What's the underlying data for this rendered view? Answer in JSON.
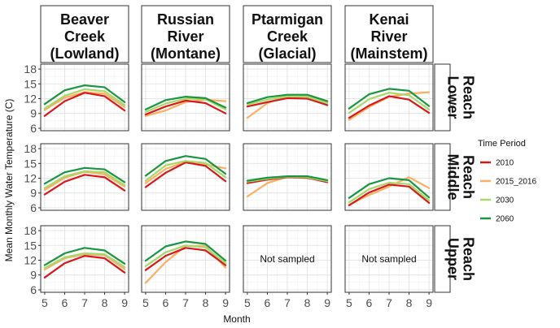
{
  "chart_data": {
    "type": "line",
    "facet_columns": [
      "Beaver\nCreek\n(Lowland)",
      "Russian\nRiver\n(Montane)",
      "Ptarmigan\nCreek\n(Glacial)",
      "Kenai\nRiver\n(Mainstem)"
    ],
    "facet_rows": [
      "Lower\nReach",
      "Middle\nReach",
      "Upper\nReach"
    ],
    "xlabel": "Month",
    "ylabel": "Mean Monthly Water Temperature (C)",
    "x": [
      5,
      6,
      7,
      8,
      9
    ],
    "x_ticks": [
      "5",
      "6",
      "7",
      "8",
      "9"
    ],
    "y_ticks": [
      "6",
      "9",
      "12",
      "15",
      "18"
    ],
    "ylim": [
      5.5,
      19
    ],
    "legend": {
      "title": "Time Period",
      "position": "right",
      "entries": [
        "2010",
        "2015_2016",
        "2030",
        "2060"
      ]
    },
    "series_colors": {
      "2010": "#d7191c",
      "2015_2016": "#fdae61",
      "2030": "#a6d96a",
      "2060": "#1a9641"
    },
    "not_sampled_label": "Not sampled",
    "panels": [
      {
        "col": 0,
        "row": 0,
        "sampled": true,
        "series": [
          {
            "name": "2010",
            "values": [
              8.5,
              11.5,
              13.2,
              12.5,
              9.6
            ]
          },
          {
            "name": "2015_2016",
            "values": [
              9.7,
              12.2,
              13.3,
              13.0,
              10.3
            ]
          },
          {
            "name": "2030",
            "values": [
              10.0,
              12.6,
              13.9,
              13.5,
              10.7
            ]
          },
          {
            "name": "2060",
            "values": [
              10.9,
              13.7,
              14.7,
              14.3,
              11.3
            ]
          }
        ]
      },
      {
        "col": 1,
        "row": 0,
        "sampled": true,
        "series": [
          {
            "name": "2010",
            "values": [
              8.8,
              10.4,
              11.6,
              11.1,
              9.0
            ]
          },
          {
            "name": "2015_2016",
            "values": [
              8.5,
              9.6,
              11.3,
              11.8,
              11.5
            ]
          },
          {
            "name": "2030",
            "values": [
              9.3,
              11.0,
              12.0,
              11.9,
              9.8
            ]
          },
          {
            "name": "2060",
            "values": [
              9.8,
              11.7,
              12.4,
              12.1,
              10.2
            ]
          }
        ]
      },
      {
        "col": 2,
        "row": 0,
        "sampled": true,
        "series": [
          {
            "name": "2010",
            "values": [
              10.4,
              11.3,
              12.1,
              12.0,
              10.7
            ]
          },
          {
            "name": "2015_2016",
            "values": [
              8.1,
              11.1,
              12.6,
              12.5,
              11.2
            ]
          },
          {
            "name": "2030",
            "values": [
              10.8,
              11.8,
              12.5,
              12.4,
              11.1
            ]
          },
          {
            "name": "2060",
            "values": [
              11.1,
              12.3,
              12.8,
              12.8,
              11.5
            ]
          }
        ]
      },
      {
        "col": 3,
        "row": 0,
        "sampled": true,
        "series": [
          {
            "name": "2010",
            "values": [
              8.1,
              10.6,
              12.5,
              11.8,
              9.1
            ]
          },
          {
            "name": "2015_2016",
            "values": [
              7.7,
              10.3,
              12.4,
              13.0,
              13.3
            ]
          },
          {
            "name": "2030",
            "values": [
              9.1,
              11.9,
              13.2,
              12.7,
              9.8
            ]
          },
          {
            "name": "2060",
            "values": [
              10.0,
              12.9,
              14.0,
              13.6,
              10.5
            ]
          }
        ]
      },
      {
        "col": 0,
        "row": 1,
        "sampled": true,
        "series": [
          {
            "name": "2010",
            "values": [
              8.7,
              11.3,
              12.7,
              12.2,
              9.5
            ]
          },
          {
            "name": "2015_2016",
            "values": [
              9.6,
              12.1,
              13.3,
              12.8,
              10.3
            ]
          },
          {
            "name": "2030",
            "values": [
              10.0,
              12.4,
              13.4,
              13.2,
              10.6
            ]
          },
          {
            "name": "2060",
            "values": [
              10.9,
              13.2,
              14.1,
              13.8,
              11.2
            ]
          }
        ]
      },
      {
        "col": 1,
        "row": 1,
        "sampled": true,
        "series": [
          {
            "name": "2010",
            "values": [
              10.2,
              13.1,
              15.2,
              14.5,
              11.4
            ]
          },
          {
            "name": "2015_2016",
            "values": [
              11.0,
              13.9,
              15.3,
              14.8,
              14.0
            ]
          },
          {
            "name": "2030",
            "values": [
              11.5,
              14.6,
              15.5,
              15.1,
              12.2
            ]
          },
          {
            "name": "2060",
            "values": [
              12.5,
              15.5,
              16.5,
              15.9,
              12.9
            ]
          }
        ]
      },
      {
        "col": 2,
        "row": 1,
        "sampled": true,
        "series": [
          {
            "name": "2010",
            "values": [
              11.0,
              11.7,
              12.2,
              12.1,
              11.2
            ]
          },
          {
            "name": "2015_2016",
            "values": [
              8.3,
              11.0,
              12.3,
              12.0,
              11.5
            ]
          },
          {
            "name": "2030",
            "values": [
              11.3,
              11.9,
              12.3,
              12.2,
              11.4
            ]
          },
          {
            "name": "2060",
            "values": [
              11.5,
              12.1,
              12.4,
              12.4,
              11.6
            ]
          }
        ]
      },
      {
        "col": 3,
        "row": 1,
        "sampled": true,
        "series": [
          {
            "name": "2010",
            "values": [
              6.5,
              9.1,
              10.7,
              10.3,
              7.0
            ]
          },
          {
            "name": "2015_2016",
            "values": [
              6.6,
              8.6,
              10.3,
              12.2,
              10.0
            ]
          },
          {
            "name": "2030",
            "values": [
              7.1,
              9.8,
              11.1,
              10.8,
              7.5
            ]
          },
          {
            "name": "2060",
            "values": [
              8.0,
              10.8,
              12.0,
              11.6,
              8.1
            ]
          }
        ]
      },
      {
        "col": 0,
        "row": 2,
        "sampled": true,
        "series": [
          {
            "name": "2010",
            "values": [
              8.5,
              11.4,
              12.9,
              12.4,
              9.5
            ]
          },
          {
            "name": "2015_2016",
            "values": [
              10.1,
              12.4,
              13.2,
              13.0,
              10.2
            ]
          },
          {
            "name": "2030",
            "values": [
              10.4,
              12.6,
              13.4,
              13.2,
              10.6
            ]
          },
          {
            "name": "2060",
            "values": [
              11.0,
              13.4,
              14.5,
              14.0,
              11.3
            ]
          }
        ]
      },
      {
        "col": 1,
        "row": 2,
        "sampled": true,
        "series": [
          {
            "name": "2010",
            "values": [
              10.0,
              12.9,
              14.5,
              14.0,
              11.0
            ]
          },
          {
            "name": "2015_2016",
            "values": [
              7.4,
              11.6,
              14.9,
              14.9,
              10.5
            ]
          },
          {
            "name": "2030",
            "values": [
              10.8,
              13.6,
              15.0,
              14.6,
              11.4
            ]
          },
          {
            "name": "2060",
            "values": [
              11.9,
              14.8,
              15.8,
              15.3,
              11.9
            ]
          }
        ]
      },
      {
        "col": 2,
        "row": 2,
        "sampled": false,
        "series": []
      },
      {
        "col": 3,
        "row": 2,
        "sampled": false,
        "series": []
      }
    ]
  }
}
